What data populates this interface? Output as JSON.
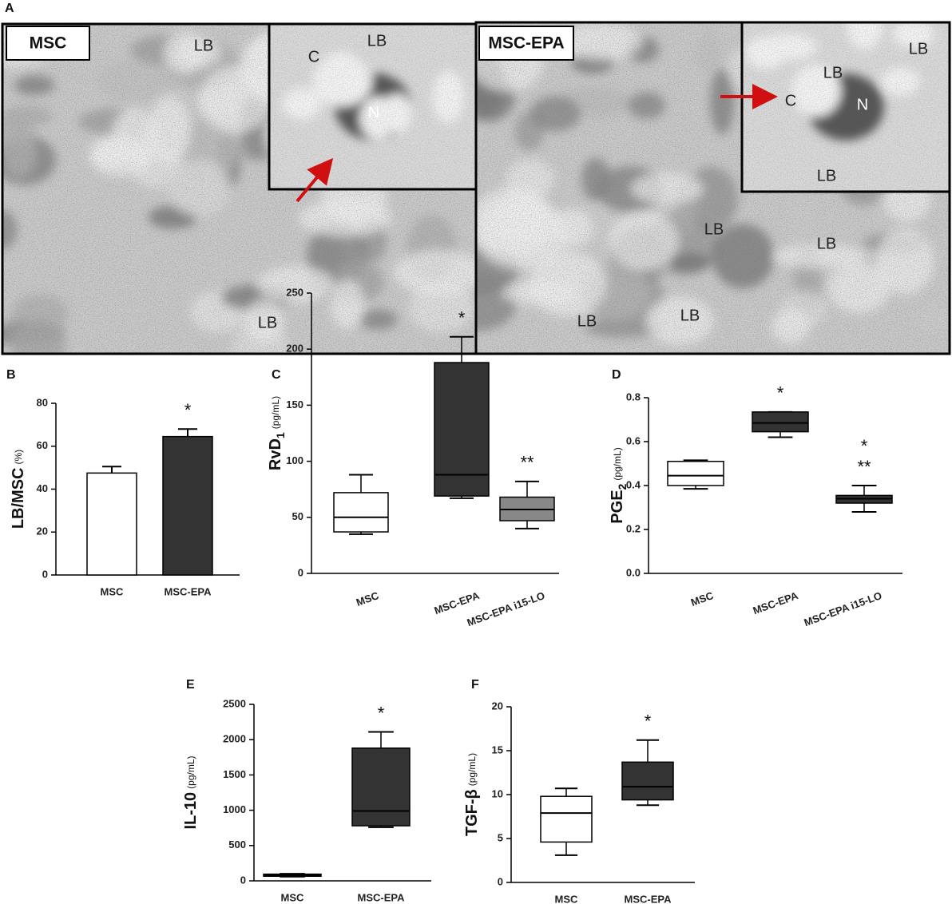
{
  "panel_a": {
    "label": "A",
    "images": [
      {
        "title": "MSC",
        "labels": [
          "LB",
          "LB"
        ],
        "inset_labels": [
          "C",
          "LB",
          "N"
        ]
      },
      {
        "title": "MSC-EPA",
        "labels": [
          "LB",
          "LB",
          "LB",
          "LB"
        ],
        "inset_labels": [
          "LB",
          "LB",
          "C",
          "N",
          "LB"
        ]
      }
    ]
  },
  "chart_data": [
    {
      "type": "bar",
      "panel_label": "B",
      "ylabel": "LB/MSC",
      "ylabel_unit": "(%)",
      "categories": [
        "MSC",
        "MSC-EPA"
      ],
      "values": [
        47.5,
        64.5
      ],
      "errors": [
        3,
        3.5
      ],
      "colors": [
        "#ffffff",
        "#333333"
      ],
      "significance": [
        null,
        [
          "*"
        ]
      ],
      "ylim": [
        0,
        80
      ],
      "yticks": [
        0,
        20,
        40,
        60,
        80
      ]
    },
    {
      "type": "box",
      "panel_label": "C",
      "ylabel": "RvD",
      "ylabel_sub": "1",
      "ylabel_unit": "(pg/mL)",
      "categories": [
        "MSC",
        "MSC-EPA",
        "MSC-EPA i15-LO"
      ],
      "boxes": [
        {
          "min": 35,
          "q1": 37,
          "median": 50,
          "q3": 72,
          "max": 88
        },
        {
          "min": 67,
          "q1": 69,
          "median": 88,
          "q3": 188,
          "max": 211
        },
        {
          "min": 40,
          "q1": 47,
          "median": 57,
          "q3": 68,
          "max": 82
        }
      ],
      "colors": [
        "#ffffff",
        "#333333",
        "#888888"
      ],
      "significance": [
        null,
        [
          "*"
        ],
        [
          "**"
        ]
      ],
      "ylim": [
        0,
        250
      ],
      "yticks": [
        0,
        50,
        100,
        150,
        200,
        250
      ]
    },
    {
      "type": "box",
      "panel_label": "D",
      "ylabel": "PGE",
      "ylabel_sub": "2",
      "ylabel_unit": "(pg/mL)",
      "categories": [
        "MSC",
        "MSC-EPA",
        "MSC-EPA i15-LO"
      ],
      "boxes": [
        {
          "min": 0.385,
          "q1": 0.4,
          "median": 0.445,
          "q3": 0.51,
          "max": 0.515
        },
        {
          "min": 0.62,
          "q1": 0.645,
          "median": 0.685,
          "q3": 0.735,
          "max": 0.735
        },
        {
          "min": 0.28,
          "q1": 0.32,
          "median": 0.34,
          "q3": 0.355,
          "max": 0.4
        }
      ],
      "colors": [
        "#ffffff",
        "#333333",
        "#333333"
      ],
      "significance": [
        null,
        [
          "*"
        ],
        [
          "*",
          "**"
        ]
      ],
      "ylim": [
        0,
        0.8
      ],
      "yticks": [
        {
          "value": 0,
          "label": "0.0"
        },
        0.2,
        0.4,
        0.6,
        0.8
      ]
    },
    {
      "type": "box",
      "panel_label": "E",
      "ylabel": "IL-10",
      "ylabel_unit": "(pg/mL)",
      "categories": [
        "MSC",
        "MSC-EPA"
      ],
      "boxes": [
        {
          "min": 60,
          "q1": 65,
          "median": 80,
          "q3": 95,
          "max": 100
        },
        {
          "min": 760,
          "q1": 780,
          "median": 990,
          "q3": 1880,
          "max": 2110
        }
      ],
      "colors": [
        "#333333",
        "#333333"
      ],
      "significance": [
        null,
        [
          "*"
        ]
      ],
      "ylim": [
        0,
        2500
      ],
      "yticks": [
        0,
        500,
        1000,
        1500,
        2000,
        2500
      ]
    },
    {
      "type": "box",
      "panel_label": "F",
      "ylabel": "TGF-β",
      "ylabel_unit": "(pg/mL)",
      "categories": [
        "MSC",
        "MSC-EPA"
      ],
      "boxes": [
        {
          "min": 3.1,
          "q1": 4.6,
          "median": 7.9,
          "q3": 9.8,
          "max": 10.7
        },
        {
          "min": 8.8,
          "q1": 9.4,
          "median": 10.9,
          "q3": 13.7,
          "max": 16.2
        }
      ],
      "colors": [
        "#ffffff",
        "#333333"
      ],
      "significance": [
        null,
        [
          "*"
        ]
      ],
      "ylim": [
        0,
        20
      ],
      "yticks": [
        0,
        5,
        10,
        15,
        20
      ]
    }
  ]
}
